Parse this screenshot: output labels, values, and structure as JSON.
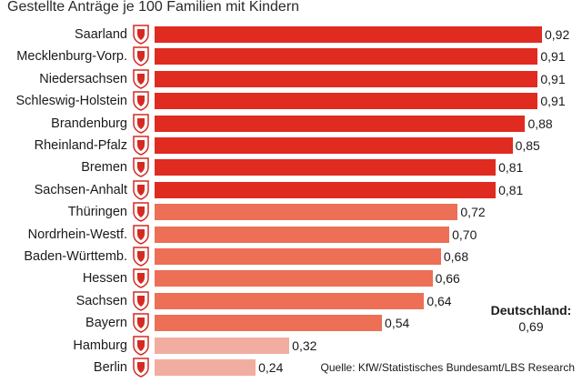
{
  "chart_data": {
    "type": "bar",
    "orientation": "horizontal",
    "title": "Gestellte Anträge je 100 Familien mit Kindern",
    "categories": [
      "Saarland",
      "Mecklenburg-Vorp.",
      "Niedersachsen",
      "Schleswig-Holstein",
      "Brandenburg",
      "Rheinland-Pfalz",
      "Bremen",
      "Sachsen-Anhalt",
      "Thüringen",
      "Nordrhein-Westf.",
      "Baden-Württemb.",
      "Hessen",
      "Sachsen",
      "Bayern",
      "Hamburg",
      "Berlin"
    ],
    "values": [
      0.92,
      0.91,
      0.91,
      0.91,
      0.88,
      0.85,
      0.81,
      0.81,
      0.72,
      0.7,
      0.68,
      0.66,
      0.64,
      0.54,
      0.32,
      0.24
    ],
    "value_labels": [
      "0,92",
      "0,91",
      "0,91",
      "0,91",
      "0,88",
      "0,85",
      "0,81",
      "0,81",
      "0,72",
      "0,70",
      "0,68",
      "0,66",
      "0,64",
      "0,54",
      "0,32",
      "0,24"
    ],
    "xlim": [
      0,
      0.92
    ],
    "grid": false,
    "legend": "none",
    "colors": {
      "dark": "#e02b20",
      "medium": "#ec6f56",
      "light": "#f2ada1",
      "crest_red": "#d42a22"
    },
    "annotation": {
      "label": "Deutschland:",
      "value": "0,69"
    }
  },
  "source": "Quelle: KfW/Statistisches Bundesamt/LBS Research",
  "icons": "coat-of-arms-icon"
}
